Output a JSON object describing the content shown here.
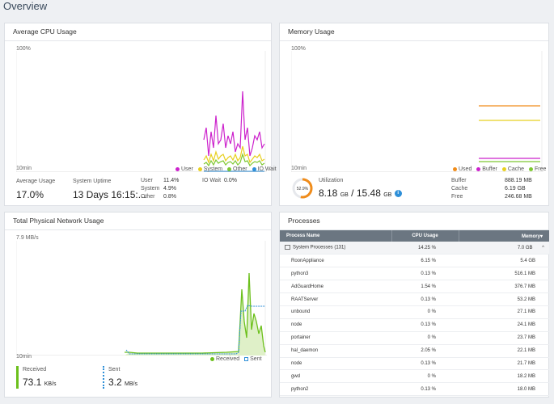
{
  "page": {
    "title": "Overview"
  },
  "cpu": {
    "title": "Average CPU Usage",
    "y_max_label": "100%",
    "x_label": "10min",
    "legend": [
      {
        "label": "User",
        "color": "#cc22cc"
      },
      {
        "label": "System",
        "color": "#e8d020"
      },
      {
        "label": "Other",
        "color": "#7ec832"
      },
      {
        "label": "IO Wait",
        "color": "#2e8fd8"
      }
    ],
    "avg_label": "Average Usage",
    "avg_value": "17.0%",
    "uptime_label": "System Uptime",
    "uptime_value": "13 Days 16:15:...",
    "user_label": "User",
    "user_value": "11.4%",
    "system_label": "System",
    "system_value": "4.9%",
    "other_label": "Other",
    "other_value": "0.8%",
    "iowait_label": "IO Wait",
    "iowait_value": "0.0%"
  },
  "memory": {
    "title": "Memory Usage",
    "y_max_label": "100%",
    "x_label": "10min",
    "legend": [
      {
        "label": "Used",
        "color": "#f08c1a"
      },
      {
        "label": "Buffer",
        "color": "#cc22cc"
      },
      {
        "label": "Cache",
        "color": "#e8d020"
      },
      {
        "label": "Free",
        "color": "#7ec832"
      }
    ],
    "gauge_percent": 52.9,
    "gauge_label": "52.9%",
    "util_label": "Utilization",
    "used_value": "8.18",
    "used_unit": "GB",
    "sep": "/",
    "total_value": "15.48",
    "total_unit": "GB",
    "info_icon": "i",
    "buffer_label": "Buffer",
    "buffer_value": "888.19 MB",
    "cache_label": "Cache",
    "cache_value": "6.19 GB",
    "free_label": "Free",
    "free_value": "246.68 MB"
  },
  "network": {
    "title": "Total Physical Network Usage",
    "y_max_label": "7.9 MB/s",
    "x_label": "10min",
    "legend": [
      {
        "label": "Received",
        "color": "#6cc01c"
      },
      {
        "label": "Sent",
        "color": "#2e8fd8"
      }
    ],
    "received_label": "Received",
    "received_value": "73.1",
    "received_unit": "KB/s",
    "sent_label": "Sent",
    "sent_value": "3.2",
    "sent_unit": "MB/s"
  },
  "processes": {
    "title": "Processes",
    "columns": [
      "Process Name",
      "CPU Usage",
      "Memory"
    ],
    "memory_sort_icon": "▾",
    "group": {
      "name": "System Processes (131)",
      "cpu": "14.25 %",
      "memory": "7.0 GB",
      "toggle": "^"
    },
    "rows": [
      {
        "name": "RoonAppliance",
        "cpu": "6.15 %",
        "memory": "5.4 GB"
      },
      {
        "name": "python3",
        "cpu": "0.13 %",
        "memory": "516.1 MB"
      },
      {
        "name": "AdGuardHome",
        "cpu": "1.54 %",
        "memory": "376.7 MB"
      },
      {
        "name": "RAATServer",
        "cpu": "0.13 %",
        "memory": "53.2 MB"
      },
      {
        "name": "unbound",
        "cpu": "0 %",
        "memory": "27.1 MB"
      },
      {
        "name": "node",
        "cpu": "0.13 %",
        "memory": "24.1 MB"
      },
      {
        "name": "portainer",
        "cpu": "0 %",
        "memory": "23.7 MB"
      },
      {
        "name": "hal_daemon",
        "cpu": "2.05 %",
        "memory": "22.1 MB"
      },
      {
        "name": "node",
        "cpu": "0.13 %",
        "memory": "21.7 MB"
      },
      {
        "name": "gwd",
        "cpu": "0 %",
        "memory": "18.2 MB"
      },
      {
        "name": "python2",
        "cpu": "0.13 %",
        "memory": "18.0 MB"
      }
    ]
  }
}
